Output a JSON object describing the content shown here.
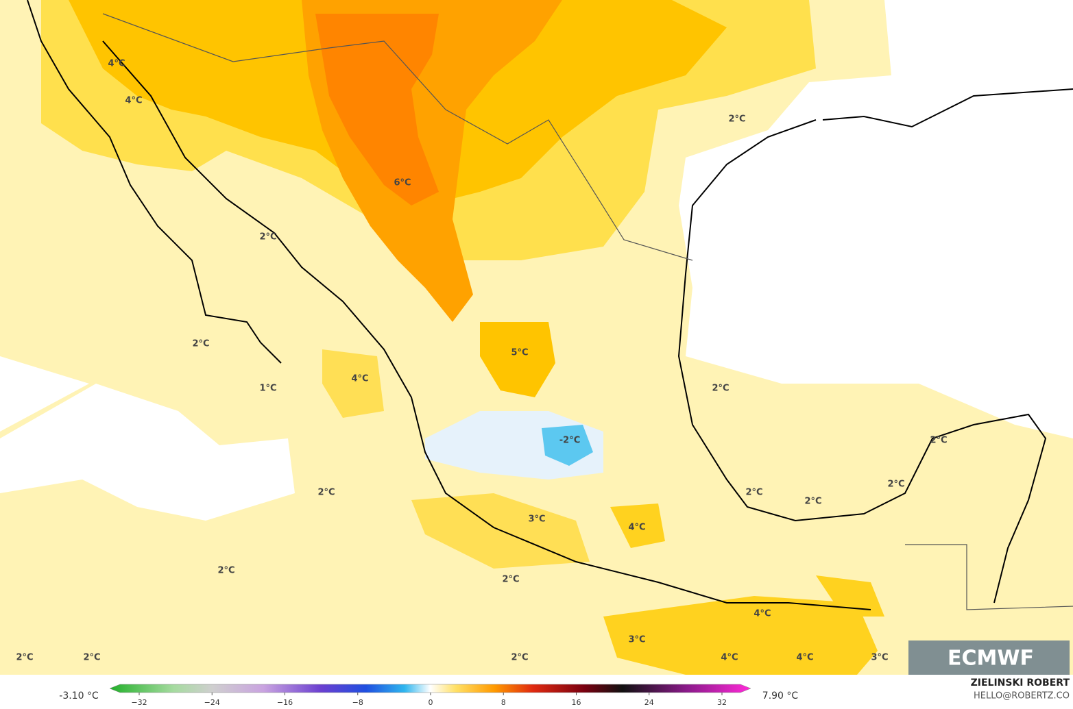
{
  "map": {
    "contour_labels": [
      "4°C",
      "4°C",
      "2°C",
      "6°C",
      "2°C",
      "2°C",
      "5°C",
      "4°C",
      "1°C",
      "2°C",
      "-2°C",
      "2°C",
      "2°C",
      "2°C",
      "2°C",
      "2°C",
      "3°C",
      "4°C",
      "2°C",
      "2°C",
      "4°C",
      "3°C",
      "2°C",
      "2°C",
      "2°C",
      "4°C",
      "4°C",
      "3°C"
    ],
    "logo": "ECMWF"
  },
  "colorbar": {
    "min_label": "-3.10 °C",
    "max_label": "7.90 °C",
    "ticks": [
      {
        "value": -32,
        "label": "−32"
      },
      {
        "value": -24,
        "label": "−24"
      },
      {
        "value": -16,
        "label": "−16"
      },
      {
        "value": -8,
        "label": "−8"
      },
      {
        "value": 0,
        "label": "0"
      },
      {
        "value": 8,
        "label": "8"
      },
      {
        "value": 16,
        "label": "16"
      },
      {
        "value": 24,
        "label": "24"
      },
      {
        "value": 32,
        "label": "32"
      }
    ]
  },
  "credits": {
    "author": "ZIELINSKI ROBERT",
    "contact": "HELLO@ROBERTZ.CO"
  }
}
